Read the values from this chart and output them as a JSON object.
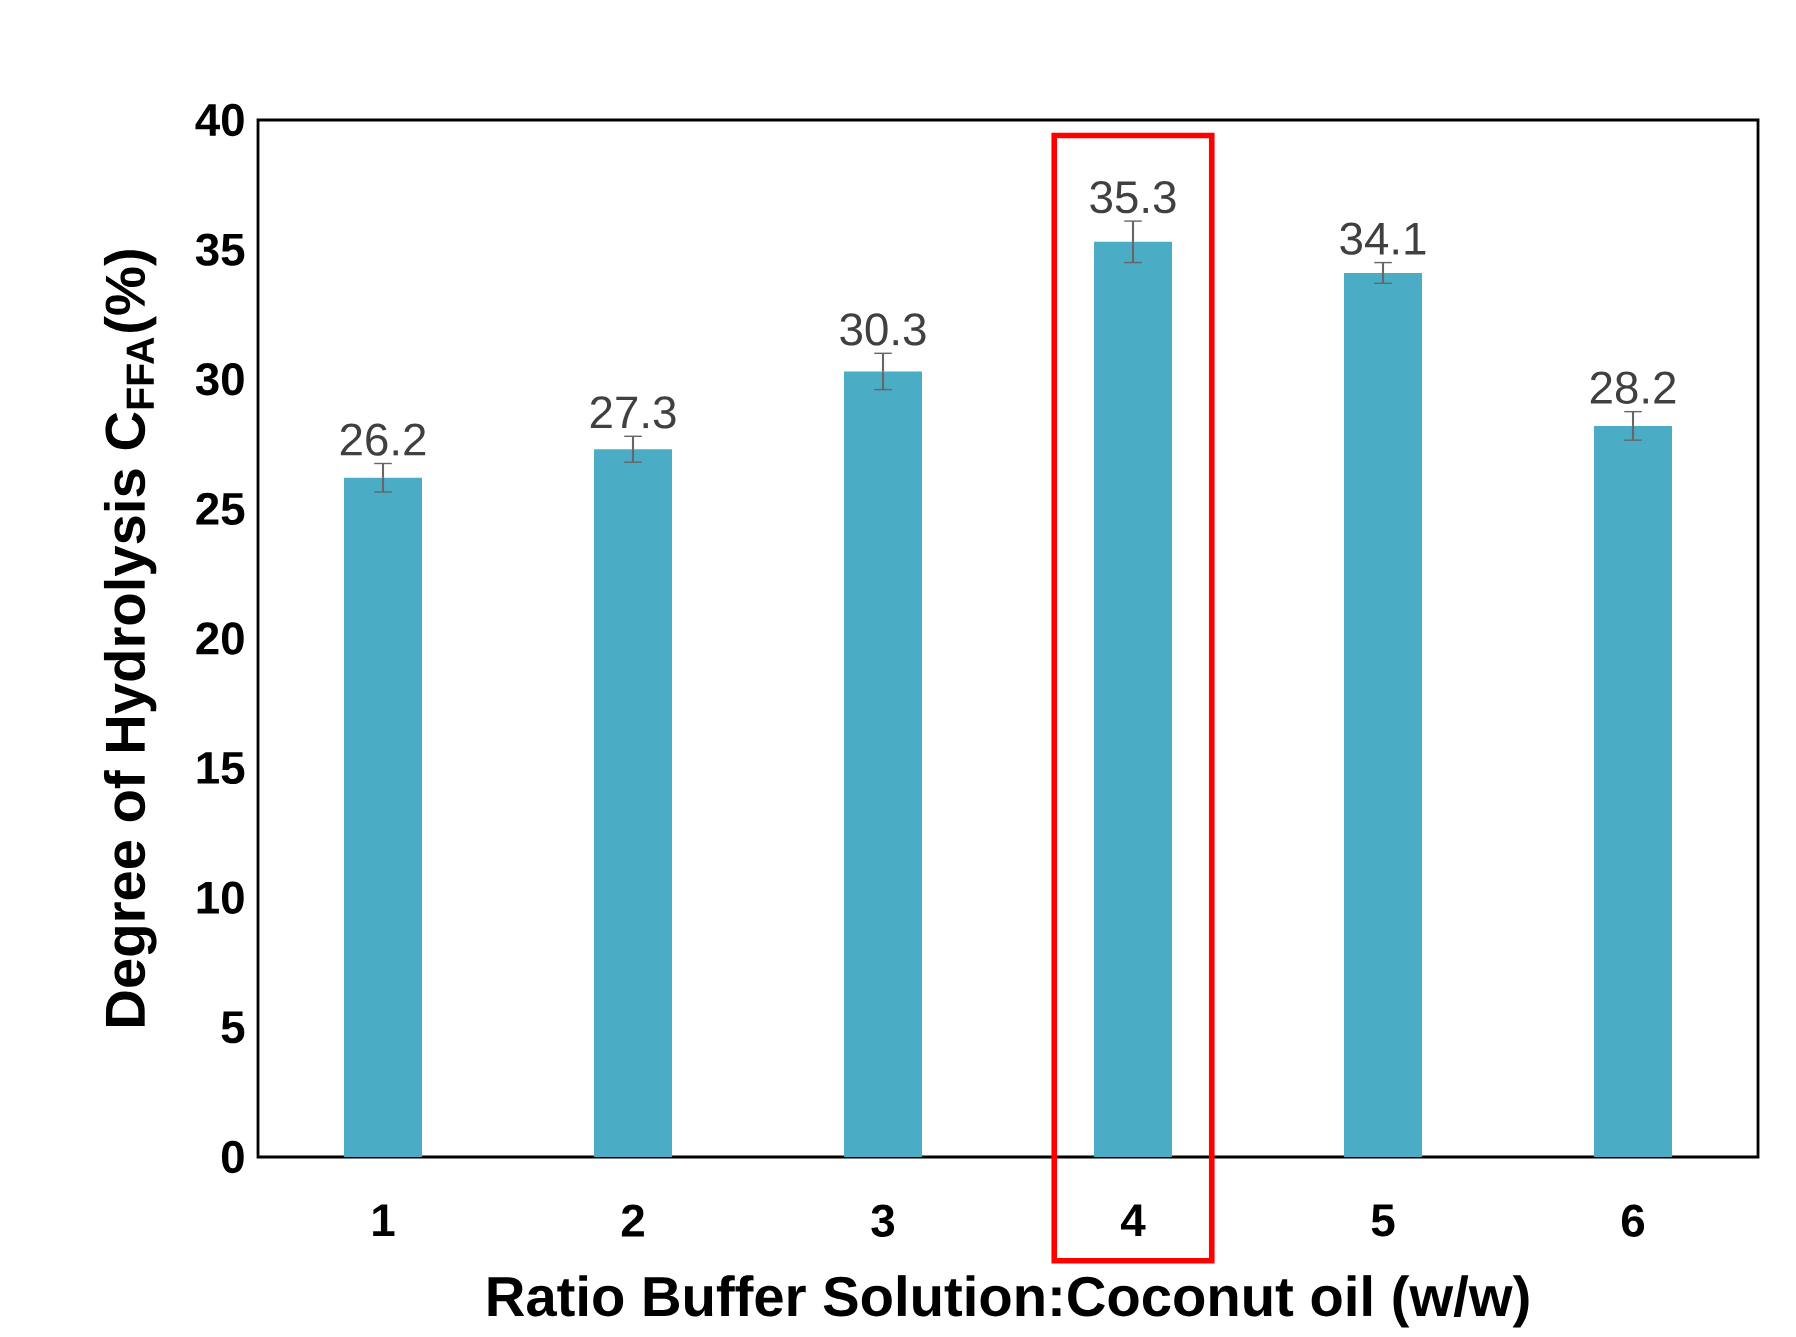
{
  "chart_data": {
    "type": "bar",
    "xlabel": "Ratio Buffer Solution:Coconut oil (w/w)",
    "ylabel": "Degree of Hydrolysis C$_{FFA}$(%)",
    "categories": [
      "1",
      "2",
      "3",
      "4",
      "5",
      "6"
    ],
    "values": [
      26.2,
      27.3,
      30.3,
      35.3,
      34.1,
      28.2
    ],
    "errors": [
      0.55,
      0.5,
      0.7,
      0.8,
      0.4,
      0.55
    ],
    "color": "#4bacc6",
    "data_labels": true,
    "ylim": [
      0,
      40
    ],
    "yticks": [
      0,
      5,
      10,
      15,
      20,
      25,
      30,
      35,
      40
    ]
  }
}
